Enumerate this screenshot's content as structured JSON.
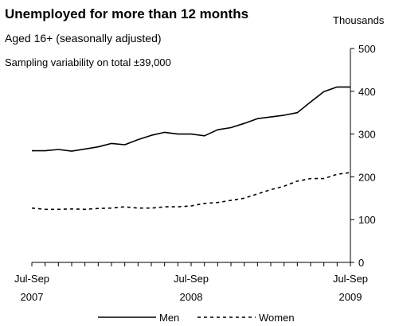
{
  "chart_data": {
    "type": "line",
    "title": "Unemployed for more than 12 months",
    "subtitle": "Aged 16+ (seasonally adjusted)",
    "note": "Sampling variability on total ±39,000",
    "ylabel": "Thousands",
    "xlabel": "",
    "ylim": [
      0,
      500
    ],
    "yticks": [
      0,
      100,
      200,
      300,
      400,
      500
    ],
    "x_tick_labels": [
      {
        "index": 0,
        "line1": "Jul-Sep",
        "line2": "2007"
      },
      {
        "index": 12,
        "line1": "Jul-Sep",
        "line2": "2008"
      },
      {
        "index": 24,
        "line1": "Jul-Sep",
        "line2": "2009"
      }
    ],
    "x_count": 25,
    "grid": false,
    "legend_position": "bottom",
    "series": [
      {
        "name": "Men",
        "style": "solid",
        "values": [
          261,
          261,
          264,
          260,
          265,
          270,
          278,
          275,
          287,
          297,
          304,
          300,
          300,
          296,
          310,
          315,
          325,
          336,
          340,
          344,
          350,
          375,
          399,
          410,
          410
        ]
      },
      {
        "name": "Women",
        "style": "dashed",
        "values": [
          127,
          124,
          124,
          125,
          124,
          126,
          127,
          130,
          127,
          127,
          130,
          130,
          132,
          138,
          140,
          145,
          150,
          160,
          170,
          178,
          190,
          196,
          196,
          206,
          210
        ]
      }
    ]
  }
}
